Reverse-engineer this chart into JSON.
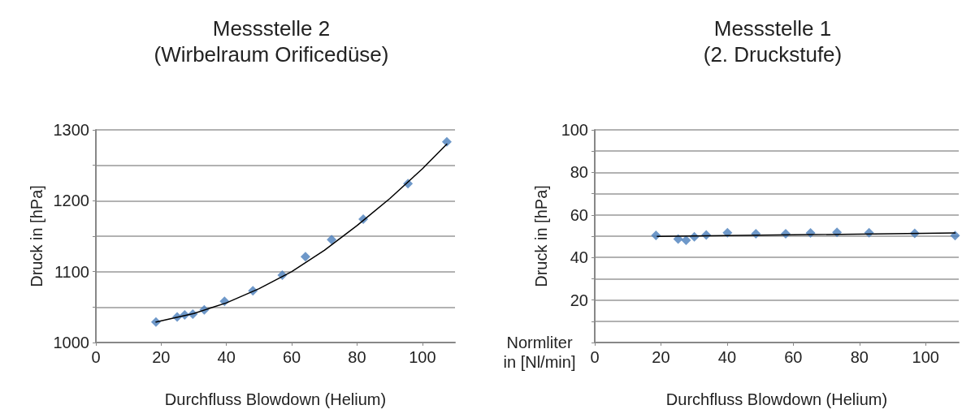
{
  "chart_data": [
    {
      "type": "scatter",
      "title": "Messstelle 2\n(Wirbelraum Orificedüse)",
      "xlabel": "Durchfluss Blowdown (Helium)",
      "ylabel": "Druck in [hPa]",
      "series": [
        {
          "color": "#4a7ebb",
          "marker": "diamond",
          "x": [
            18.4,
            24.9,
            27.2,
            29.7,
            33.2,
            39.4,
            48.1,
            57.1,
            64.2,
            72.2,
            81.9,
            95.6,
            107.5
          ],
          "values": [
            1029,
            1036,
            1039,
            1040,
            1046,
            1058,
            1073,
            1095,
            1121,
            1145,
            1174,
            1224,
            1283
          ]
        },
        {
          "type": "line",
          "color": "#000000",
          "marker": "none",
          "line_style": "solid",
          "x": [
            18.4,
            30,
            40,
            50,
            60,
            70,
            80,
            90,
            100,
            107.5
          ],
          "values": [
            1029,
            1041,
            1056,
            1076,
            1100,
            1130,
            1165,
            1203,
            1245,
            1280
          ]
        }
      ],
      "xlim": [
        0,
        110
      ],
      "xticks": [
        0,
        20,
        40,
        60,
        80,
        100
      ],
      "ylim": [
        1000,
        1300
      ],
      "yticks": [
        1000,
        {
          "value": 1050,
          "label": null
        },
        1100,
        {
          "value": 1150,
          "label": null
        },
        1200,
        {
          "value": 1250,
          "label": null
        },
        1300
      ],
      "grid": "y"
    },
    {
      "type": "scatter",
      "title": "Messstelle 1\n(2. Druckstufe)",
      "xlabel": "Durchfluss Blowdown (Helium)",
      "ylabel": "Druck in [hPa]",
      "annotations": [
        "Normliter\nin [Nl/min]"
      ],
      "series": [
        {
          "color": "#4a7ebb",
          "marker": "diamond",
          "x": [
            18.5,
            25.2,
            27.6,
            30.1,
            33.7,
            40.1,
            48.7,
            57.7,
            65.2,
            73.2,
            82.9,
            96.7,
            108.9
          ],
          "values": [
            50.4,
            48.7,
            48.1,
            49.7,
            50.6,
            51.6,
            51.1,
            51.1,
            51.5,
            51.8,
            51.6,
            51.3,
            50.3
          ]
        },
        {
          "type": "line",
          "color": "#000000",
          "marker": "none",
          "line_style": "solid",
          "x": [
            18.9,
            108.9
          ],
          "values": [
            49.9,
            51.5
          ]
        }
      ],
      "xlim": [
        0,
        110
      ],
      "xticks": [
        0,
        20,
        40,
        60,
        80,
        100
      ],
      "ylim": [
        0,
        100
      ],
      "yticks": [
        {
          "value": 0,
          "label": null
        },
        {
          "value": 10,
          "label": null
        },
        20,
        {
          "value": 30,
          "label": null
        },
        40,
        {
          "value": 50,
          "label": null
        },
        60,
        {
          "value": 70,
          "label": null
        },
        80,
        {
          "value": 90,
          "label": null
        },
        100
      ],
      "grid": "y"
    }
  ]
}
